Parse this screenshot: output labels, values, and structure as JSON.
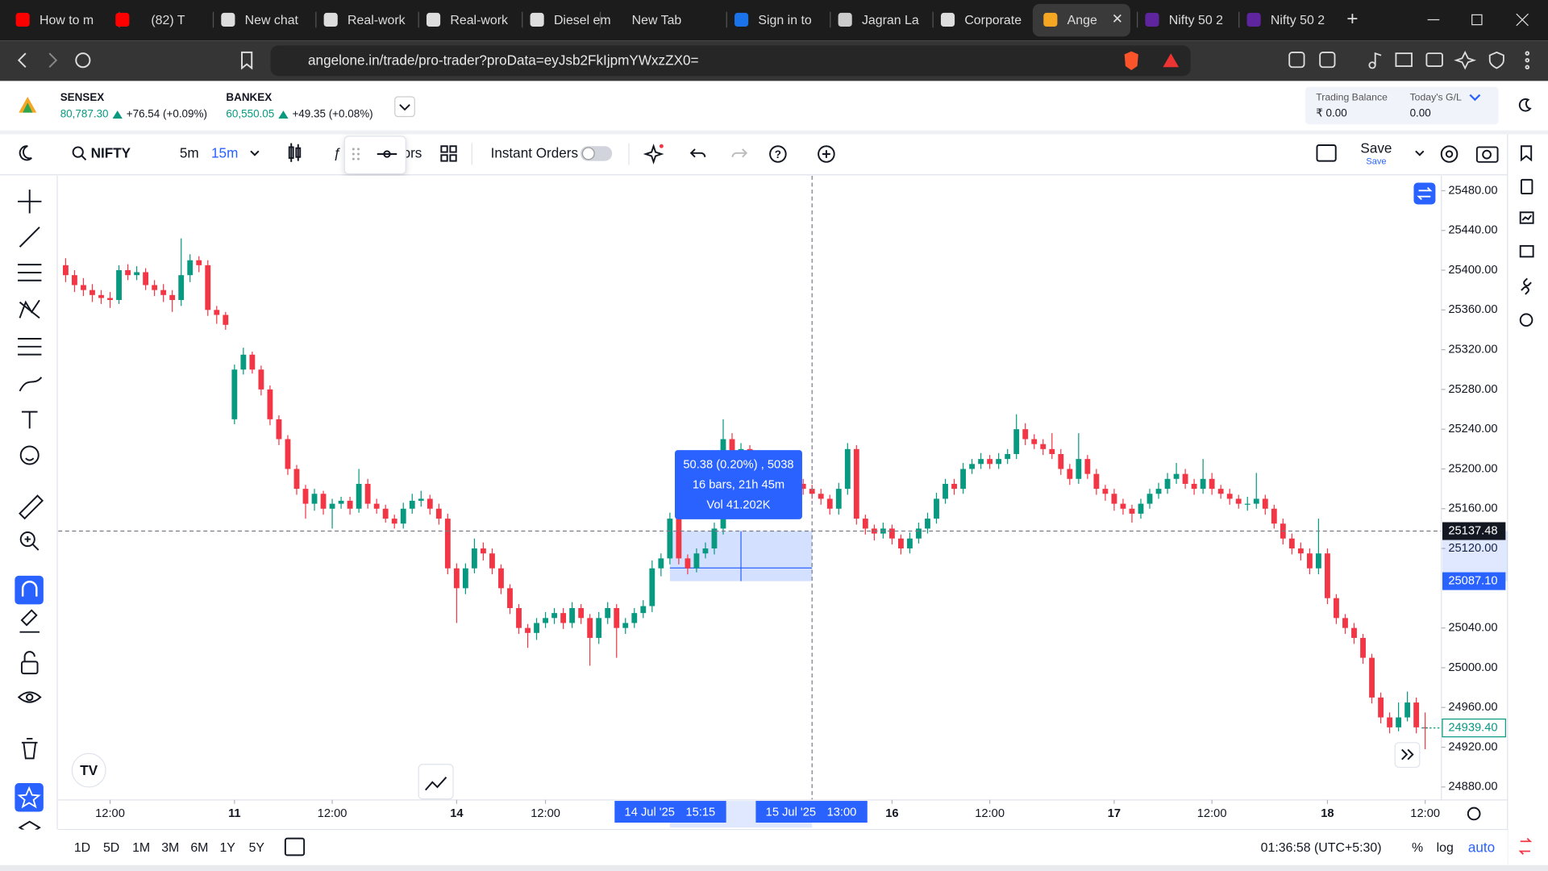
{
  "browser": {
    "tabs": [
      "How to m",
      "(82) T",
      "New chat",
      "Real-work",
      "Real-work",
      "Diesel em",
      "New Tab",
      "Sign in to",
      "Jagran La",
      "Corporate",
      "Ange",
      "Nifty 50 2",
      "Nifty 50 2"
    ],
    "url": "angelone.in/trade/pro-trader?proData=eyJsb2FkIjpmYWxzZX0="
  },
  "header": {
    "indices": [
      {
        "name": "SENSEX",
        "value": "80,787.30",
        "change": "+76.54 (+0.09%)"
      },
      {
        "name": "BANKEX",
        "value": "60,550.05",
        "change": "+49.35 (+0.08%)"
      }
    ],
    "trading_balance_label": "Trading Balance",
    "trading_balance": "₹ 0.00",
    "todays_gl_label": "Today's G/L",
    "todays_gl": "0.00"
  },
  "toolbar": {
    "symbol": "NIFTY",
    "intervals": [
      "5m",
      "15m"
    ],
    "partial_text": "ors",
    "instant_orders": "Instant Orders",
    "save": "Save",
    "save_sub": "Save"
  },
  "chart_data": {
    "type": "candlestick",
    "colors": {
      "up": "#089981",
      "down": "#f23645"
    },
    "xlim": [
      -0.5,
      154.6
    ],
    "ylim": [
      24867,
      25493
    ],
    "yticks": [
      {
        "value": 24880,
        "label": "24880.00"
      },
      {
        "value": 24920,
        "label": "24920.00"
      },
      {
        "value": 24960,
        "label": "24960.00"
      },
      {
        "value": 25000,
        "label": "25000.00"
      },
      {
        "value": 25040,
        "label": "25040.00"
      },
      {
        "value": 25120,
        "label": "25120.00"
      },
      {
        "value": 25160,
        "label": "25160.00"
      },
      {
        "value": 25200,
        "label": "25200.00"
      },
      {
        "value": 25240,
        "label": "25240.00"
      },
      {
        "value": 25280,
        "label": "25280.00"
      },
      {
        "value": 25320,
        "label": "25320.00"
      },
      {
        "value": 25360,
        "label": "25360.00"
      },
      {
        "value": 25400,
        "label": "25400.00"
      },
      {
        "value": 25440,
        "label": "25440.00"
      },
      {
        "value": 25480,
        "label": "25480.00"
      }
    ],
    "xticks": [
      {
        "value": 5,
        "label": "12:00"
      },
      {
        "value": 19,
        "label": "11"
      },
      {
        "value": 30,
        "label": "12:00"
      },
      {
        "value": 44,
        "label": "14"
      },
      {
        "value": 54,
        "label": "12:00"
      },
      {
        "value": 93,
        "label": "16"
      },
      {
        "value": 104,
        "label": "12:00"
      },
      {
        "value": 118,
        "label": "17"
      },
      {
        "value": 129,
        "label": "12:00"
      },
      {
        "value": 142,
        "label": "18"
      },
      {
        "value": 153,
        "label": "12:00"
      }
    ],
    "crosshair_price": 25137.48,
    "range_low": {
      "value": 25087.1,
      "label": "25087.10"
    },
    "last_price": {
      "value": 24939.4,
      "label": "24939.40"
    },
    "measure": {
      "x_start": 68,
      "x_end": 84,
      "start_date": "14 Jul '25",
      "start_time": "15:15",
      "end_date": "15 Jul '25",
      "end_time": "13:00",
      "tooltip": [
        "50.38 (0.20%) , 5038",
        "16 bars, 21h 45m",
        "Vol 41.202K"
      ]
    },
    "candles": [
      [
        25405,
        25412,
        25388,
        25395
      ],
      [
        25395,
        25400,
        25378,
        25385
      ],
      [
        25385,
        25392,
        25374,
        25380
      ],
      [
        25380,
        25386,
        25368,
        25375
      ],
      [
        25375,
        25380,
        25366,
        25372
      ],
      [
        25372,
        25378,
        25362,
        25370
      ],
      [
        25370,
        25405,
        25366,
        25400
      ],
      [
        25400,
        25406,
        25390,
        25395
      ],
      [
        25395,
        25404,
        25390,
        25398
      ],
      [
        25398,
        25402,
        25380,
        25385
      ],
      [
        25385,
        25390,
        25374,
        25380
      ],
      [
        25380,
        25386,
        25368,
        25375
      ],
      [
        25375,
        25380,
        25358,
        25370
      ],
      [
        25370,
        25432,
        25364,
        25395
      ],
      [
        25395,
        25416,
        25388,
        25410
      ],
      [
        25410,
        25414,
        25398,
        25405
      ],
      [
        25405,
        25410,
        25354,
        25360
      ],
      [
        25360,
        25364,
        25346,
        25355
      ],
      [
        25355,
        25358,
        25340,
        25345
      ],
      [
        25250,
        25305,
        25245,
        25300
      ],
      [
        25300,
        25322,
        25295,
        25315
      ],
      [
        25315,
        25318,
        25296,
        25300
      ],
      [
        25300,
        25304,
        25274,
        25280
      ],
      [
        25280,
        25284,
        25244,
        25250
      ],
      [
        25250,
        25254,
        25224,
        25230
      ],
      [
        25230,
        25234,
        25194,
        25200
      ],
      [
        25200,
        25204,
        25174,
        25180
      ],
      [
        25180,
        25184,
        25150,
        25165
      ],
      [
        25165,
        25180,
        25158,
        25175
      ],
      [
        25175,
        25178,
        25154,
        25160
      ],
      [
        25160,
        25170,
        25140,
        25165
      ],
      [
        25165,
        25172,
        25160,
        25168
      ],
      [
        25168,
        25172,
        25154,
        25160
      ],
      [
        25160,
        25200,
        25156,
        25185
      ],
      [
        25185,
        25190,
        25160,
        25165
      ],
      [
        25165,
        25170,
        25155,
        25160
      ],
      [
        25160,
        25164,
        25146,
        25150
      ],
      [
        25150,
        25154,
        25140,
        25145
      ],
      [
        25145,
        25166,
        25140,
        25160
      ],
      [
        25160,
        25175,
        25155,
        25168
      ],
      [
        25168,
        25178,
        25162,
        25170
      ],
      [
        25170,
        25174,
        25154,
        25160
      ],
      [
        25160,
        25165,
        25144,
        25150
      ],
      [
        25150,
        25155,
        25094,
        25100
      ],
      [
        25100,
        25105,
        25045,
        25080
      ],
      [
        25080,
        25105,
        25074,
        25100
      ],
      [
        25100,
        25130,
        25095,
        25120
      ],
      [
        25120,
        25126,
        25108,
        25115
      ],
      [
        25115,
        25120,
        25094,
        25100
      ],
      [
        25100,
        25104,
        25074,
        25080
      ],
      [
        25080,
        25084,
        25054,
        25060
      ],
      [
        25060,
        25064,
        25034,
        25040
      ],
      [
        25040,
        25044,
        25020,
        25035
      ],
      [
        25035,
        25050,
        25028,
        25045
      ],
      [
        25045,
        25056,
        25040,
        25050
      ],
      [
        25050,
        25060,
        25044,
        25055
      ],
      [
        25055,
        25060,
        25039,
        25045
      ],
      [
        25045,
        25066,
        25040,
        25060
      ],
      [
        25060,
        25064,
        25044,
        25050
      ],
      [
        25050,
        25054,
        25002,
        25030
      ],
      [
        25030,
        25056,
        25024,
        25050
      ],
      [
        25050,
        25066,
        25044,
        25060
      ],
      [
        25060,
        25064,
        25010,
        25040
      ],
      [
        25040,
        25050,
        25034,
        25045
      ],
      [
        25045,
        25060,
        25040,
        25055
      ],
      [
        25055,
        25068,
        25050,
        25062
      ],
      [
        25062,
        25108,
        25056,
        25100
      ],
      [
        25100,
        25115,
        25092,
        25110
      ],
      [
        25110,
        25156,
        25104,
        25150
      ],
      [
        25150,
        25154,
        25104,
        25110
      ],
      [
        25110,
        25114,
        25094,
        25100
      ],
      [
        25100,
        25120,
        25096,
        25115
      ],
      [
        25115,
        25126,
        25110,
        25120
      ],
      [
        25120,
        25146,
        25114,
        25140
      ],
      [
        25140,
        25250,
        25134,
        25230
      ],
      [
        25230,
        25236,
        25210,
        25215
      ],
      [
        25215,
        25226,
        25210,
        25220
      ],
      [
        25220,
        25224,
        25204,
        25210
      ],
      [
        25210,
        25214,
        25200,
        25205
      ],
      [
        25205,
        25210,
        25194,
        25200
      ],
      [
        25200,
        25204,
        25190,
        25195
      ],
      [
        25195,
        25200,
        25174,
        25180
      ],
      [
        25180,
        25190,
        25175,
        25185
      ],
      [
        25185,
        25190,
        25174,
        25180
      ],
      [
        25180,
        25184,
        25170,
        25175
      ],
      [
        25175,
        25180,
        25164,
        25170
      ],
      [
        25170,
        25174,
        25154,
        25160
      ],
      [
        25160,
        25186,
        25154,
        25180
      ],
      [
        25180,
        25226,
        25174,
        25220
      ],
      [
        25220,
        25224,
        25144,
        25150
      ],
      [
        25150,
        25154,
        25134,
        25140
      ],
      [
        25140,
        25144,
        25128,
        25135
      ],
      [
        25135,
        25146,
        25130,
        25140
      ],
      [
        25140,
        25144,
        25124,
        25130
      ],
      [
        25130,
        25134,
        25114,
        25120
      ],
      [
        25120,
        25136,
        25115,
        25130
      ],
      [
        25130,
        25146,
        25125,
        25140
      ],
      [
        25140,
        25156,
        25135,
        25150
      ],
      [
        25150,
        25176,
        25145,
        25170
      ],
      [
        25170,
        25190,
        25165,
        25185
      ],
      [
        25185,
        25190,
        25174,
        25180
      ],
      [
        25180,
        25206,
        25175,
        25200
      ],
      [
        25200,
        25210,
        25195,
        25205
      ],
      [
        25205,
        25216,
        25200,
        25210
      ],
      [
        25210,
        25214,
        25200,
        25205
      ],
      [
        25205,
        25216,
        25200,
        25210
      ],
      [
        25210,
        25220,
        25205,
        25215
      ],
      [
        25215,
        25255,
        25210,
        25240
      ],
      [
        25240,
        25246,
        25224,
        25230
      ],
      [
        25230,
        25235,
        25220,
        25225
      ],
      [
        25225,
        25230,
        25214,
        25220
      ],
      [
        25220,
        25236,
        25210,
        25215
      ],
      [
        25215,
        25220,
        25194,
        25200
      ],
      [
        25200,
        25205,
        25184,
        25190
      ],
      [
        25190,
        25236,
        25185,
        25210
      ],
      [
        25210,
        25214,
        25190,
        25195
      ],
      [
        25195,
        25200,
        25174,
        25180
      ],
      [
        25180,
        25184,
        25168,
        25175
      ],
      [
        25175,
        25180,
        25158,
        25165
      ],
      [
        25165,
        25170,
        25154,
        25160
      ],
      [
        25160,
        25164,
        25146,
        25155
      ],
      [
        25155,
        25170,
        25150,
        25165
      ],
      [
        25165,
        25180,
        25160,
        25175
      ],
      [
        25175,
        25186,
        25170,
        25180
      ],
      [
        25180,
        25196,
        25175,
        25190
      ],
      [
        25190,
        25206,
        25185,
        25195
      ],
      [
        25195,
        25200,
        25180,
        25185
      ],
      [
        25185,
        25190,
        25174,
        25180
      ],
      [
        25180,
        25210,
        25175,
        25190
      ],
      [
        25190,
        25196,
        25174,
        25180
      ],
      [
        25180,
        25184,
        25170,
        25175
      ],
      [
        25175,
        25180,
        25164,
        25170
      ],
      [
        25170,
        25174,
        25160,
        25165
      ],
      [
        25165,
        25172,
        25158,
        25165
      ],
      [
        25165,
        25196,
        25160,
        25170
      ],
      [
        25170,
        25174,
        25154,
        25160
      ],
      [
        25160,
        25164,
        25140,
        25145
      ],
      [
        25145,
        25150,
        25124,
        25130
      ],
      [
        25130,
        25135,
        25114,
        25120
      ],
      [
        25120,
        25126,
        25108,
        25115
      ],
      [
        25115,
        25120,
        25094,
        25100
      ],
      [
        25100,
        25150,
        25094,
        25115
      ],
      [
        25115,
        25120,
        25064,
        25070
      ],
      [
        25070,
        25074,
        25044,
        25050
      ],
      [
        25050,
        25054,
        25034,
        25040
      ],
      [
        25040,
        25045,
        25024,
        25030
      ],
      [
        25030,
        25034,
        25004,
        25010
      ],
      [
        25010,
        25014,
        24964,
        24970
      ],
      [
        24970,
        24975,
        24944,
        24950
      ],
      [
        24950,
        24955,
        24934,
        24940
      ],
      [
        24940,
        24965,
        24936,
        24950
      ],
      [
        24950,
        24976,
        24946,
        24965
      ],
      [
        24965,
        24970,
        24934,
        24940
      ],
      [
        24940,
        24955,
        24918,
        24939.4
      ]
    ]
  },
  "footer": {
    "ranges": [
      "1D",
      "5D",
      "1M",
      "3M",
      "6M",
      "1Y",
      "5Y"
    ],
    "clock": "01:36:58 (UTC+5:30)",
    "percent": "%",
    "log": "log",
    "auto": "auto"
  }
}
